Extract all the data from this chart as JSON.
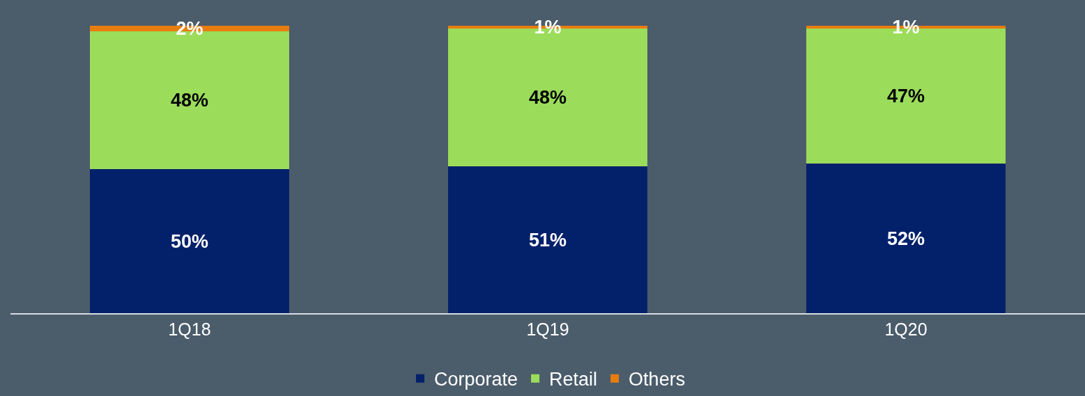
{
  "chart_data": {
    "type": "bar",
    "stacked": true,
    "categories": [
      "1Q18",
      "1Q19",
      "1Q20"
    ],
    "series": [
      {
        "name": "Corporate",
        "color": "#03216a",
        "values": [
          50,
          51,
          52
        ],
        "value_labels": [
          "50%",
          "51%",
          "52%"
        ]
      },
      {
        "name": "Retail",
        "color": "#9bdc5a",
        "values": [
          48,
          48,
          47
        ],
        "value_labels": [
          "48%",
          "48%",
          "47%"
        ]
      },
      {
        "name": "Others",
        "color": "#e87d0f",
        "values": [
          2,
          1,
          1
        ],
        "value_labels": [
          "2%",
          "1%",
          "1%"
        ]
      }
    ],
    "legend": "bottom",
    "grid": false,
    "tick_labels": "x"
  }
}
